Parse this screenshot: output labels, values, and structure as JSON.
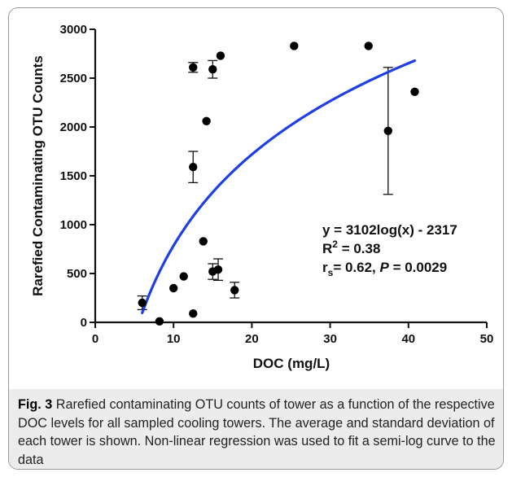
{
  "chart_data": {
    "type": "scatter",
    "xlabel": "DOC (mg/L)",
    "ylabel": "Rarefied Contaminating OTU Counts",
    "xlim": [
      0,
      50
    ],
    "ylim": [
      0,
      3000
    ],
    "x_ticks": [
      0,
      10,
      20,
      30,
      40,
      50
    ],
    "y_ticks": [
      0,
      500,
      1000,
      1500,
      2000,
      2500,
      3000
    ],
    "grid": false,
    "points": [
      {
        "x": 6.0,
        "y": 200,
        "err": 70
      },
      {
        "x": 8.2,
        "y": 10,
        "err": 0
      },
      {
        "x": 10.0,
        "y": 350,
        "err": 0
      },
      {
        "x": 11.3,
        "y": 470,
        "err": 0
      },
      {
        "x": 12.5,
        "y": 90,
        "err": 0
      },
      {
        "x": 12.5,
        "y": 1590,
        "err": 160
      },
      {
        "x": 12.5,
        "y": 2610,
        "err": 50
      },
      {
        "x": 13.8,
        "y": 830,
        "err": 0
      },
      {
        "x": 14.2,
        "y": 2060,
        "err": 0
      },
      {
        "x": 15.0,
        "y": 520,
        "err": 80
      },
      {
        "x": 15.0,
        "y": 2590,
        "err": 90
      },
      {
        "x": 15.7,
        "y": 540,
        "err": 110
      },
      {
        "x": 16.0,
        "y": 2730,
        "err": 0
      },
      {
        "x": 17.8,
        "y": 330,
        "err": 80
      },
      {
        "x": 25.4,
        "y": 2830,
        "err": 0
      },
      {
        "x": 34.9,
        "y": 2830,
        "err": 0
      },
      {
        "x": 37.4,
        "y": 1960,
        "err": 650
      },
      {
        "x": 40.8,
        "y": 2360,
        "err": 0
      }
    ],
    "fit": {
      "a": 3102,
      "b": -2317,
      "x_range": [
        6.0,
        40.8
      ],
      "color": "#1f3fe6"
    },
    "annotation": {
      "line1": "y = 3102log(x) - 2317",
      "line2_main": "R",
      "line2_sup": "2",
      "line2_rest": " = 0.38",
      "line3_main": "r",
      "line3_sub": "s",
      "line3_mid": "= 0.62, ",
      "line3_italic": "P",
      "line3_rest": " = 0.0029"
    }
  },
  "caption": {
    "label": "Fig. 3",
    "text": " Rarefied contaminating OTU counts of tower as a function of the respective DOC levels for all sampled cooling towers. The average and standard deviation of each tower is shown. Non-linear regression was used to fit a semi-log curve to the data"
  }
}
